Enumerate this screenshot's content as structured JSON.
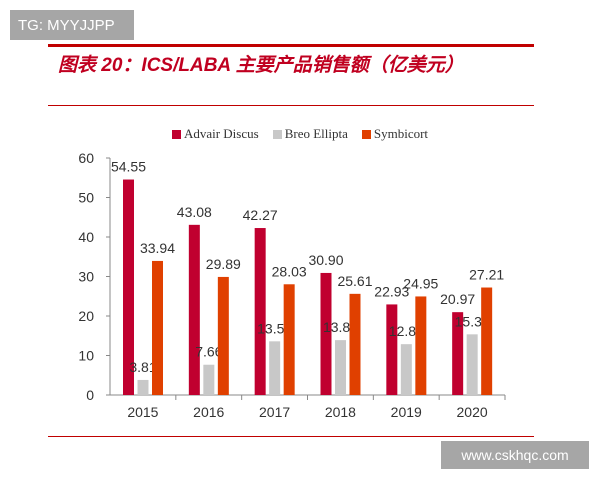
{
  "watermark_top": "TG: MYYJJPP",
  "watermark_bottom": "www.cskhqc.com",
  "chart_data": {
    "type": "bar",
    "title": "图表 20：ICS/LABA 主要产品销售额（亿美元）",
    "categories": [
      "2015",
      "2016",
      "2017",
      "2018",
      "2019",
      "2020"
    ],
    "ylim": [
      0,
      60
    ],
    "yticks": [
      0,
      10,
      20,
      30,
      40,
      50,
      60
    ],
    "legend_position": "top",
    "grid": false,
    "series": [
      {
        "name": "Advair Discus",
        "color": "#c0002f",
        "values": [
          54.55,
          43.08,
          42.27,
          30.9,
          22.93,
          20.97
        ]
      },
      {
        "name": "Breo Ellipta",
        "color": "#c8c8c8",
        "values": [
          3.81,
          7.66,
          13.59,
          13.89,
          12.87,
          15.36
        ]
      },
      {
        "name": "Symbicort",
        "color": "#e04000",
        "values": [
          33.94,
          29.89,
          28.03,
          25.61,
          24.95,
          27.21
        ]
      }
    ]
  }
}
